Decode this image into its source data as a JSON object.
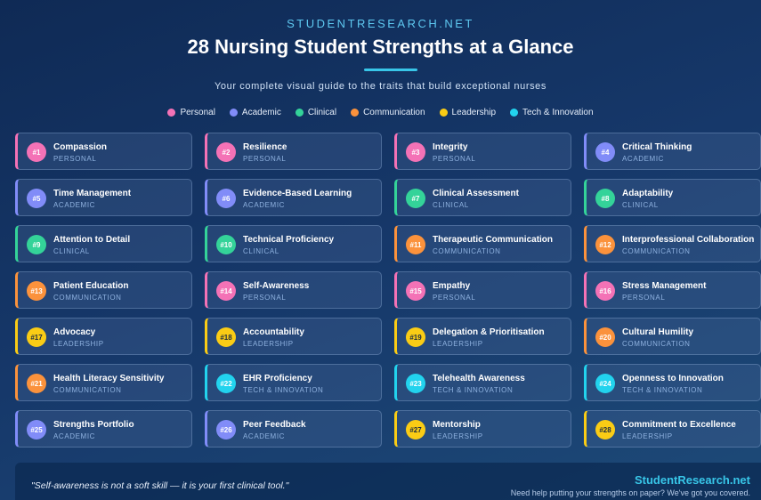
{
  "header": {
    "site": "STUDENTRESEARCH.NET",
    "title": "28 Nursing Student Strengths at a Glance",
    "subtitle": "Your complete visual guide to the traits that build exceptional nurses"
  },
  "legend": [
    {
      "label": "Personal",
      "color": "#f472b6"
    },
    {
      "label": "Academic",
      "color": "#818cf8"
    },
    {
      "label": "Clinical",
      "color": "#34d399"
    },
    {
      "label": "Communication",
      "color": "#fb923c"
    },
    {
      "label": "Leadership",
      "color": "#facc15"
    },
    {
      "label": "Tech & Innovation",
      "color": "#22d3ee"
    }
  ],
  "cards": [
    {
      "number": "#1",
      "name": "Compassion",
      "category": "PERSONAL",
      "color": "#f472b6"
    },
    {
      "number": "#2",
      "name": "Resilience",
      "category": "PERSONAL",
      "color": "#f472b6"
    },
    {
      "number": "#3",
      "name": "Integrity",
      "category": "PERSONAL",
      "color": "#f472b6"
    },
    {
      "number": "#4",
      "name": "Critical Thinking",
      "category": "ACADEMIC",
      "color": "#818cf8"
    },
    {
      "number": "#5",
      "name": "Time Management",
      "category": "ACADEMIC",
      "color": "#818cf8"
    },
    {
      "number": "#6",
      "name": "Evidence-Based Learning",
      "category": "ACADEMIC",
      "color": "#818cf8"
    },
    {
      "number": "#7",
      "name": "Clinical Assessment",
      "category": "CLINICAL",
      "color": "#34d399"
    },
    {
      "number": "#8",
      "name": "Adaptability",
      "category": "CLINICAL",
      "color": "#34d399"
    },
    {
      "number": "#9",
      "name": "Attention to Detail",
      "category": "CLINICAL",
      "color": "#34d399"
    },
    {
      "number": "#10",
      "name": "Technical Proficiency",
      "category": "CLINICAL",
      "color": "#34d399"
    },
    {
      "number": "#11",
      "name": "Therapeutic Communication",
      "category": "COMMUNICATION",
      "color": "#fb923c"
    },
    {
      "number": "#12",
      "name": "Interprofessional Collaboration",
      "category": "COMMUNICATION",
      "color": "#fb923c"
    },
    {
      "number": "#13",
      "name": "Patient Education",
      "category": "COMMUNICATION",
      "color": "#fb923c"
    },
    {
      "number": "#14",
      "name": "Self-Awareness",
      "category": "PERSONAL",
      "color": "#f472b6"
    },
    {
      "number": "#15",
      "name": "Empathy",
      "category": "PERSONAL",
      "color": "#f472b6"
    },
    {
      "number": "#16",
      "name": "Stress Management",
      "category": "PERSONAL",
      "color": "#f472b6"
    },
    {
      "number": "#17",
      "name": "Advocacy",
      "category": "LEADERSHIP",
      "color": "#facc15"
    },
    {
      "number": "#18",
      "name": "Accountability",
      "category": "LEADERSHIP",
      "color": "#facc15"
    },
    {
      "number": "#19",
      "name": "Delegation & Prioritisation",
      "category": "LEADERSHIP",
      "color": "#facc15"
    },
    {
      "number": "#20",
      "name": "Cultural Humility",
      "category": "COMMUNICATION",
      "color": "#fb923c"
    },
    {
      "number": "#21",
      "name": "Health Literacy Sensitivity",
      "category": "COMMUNICATION",
      "color": "#fb923c"
    },
    {
      "number": "#22",
      "name": "EHR Proficiency",
      "category": "TECH & INNOVATION",
      "color": "#22d3ee"
    },
    {
      "number": "#23",
      "name": "Telehealth Awareness",
      "category": "TECH & INNOVATION",
      "color": "#22d3ee"
    },
    {
      "number": "#24",
      "name": "Openness to Innovation",
      "category": "TECH & INNOVATION",
      "color": "#22d3ee"
    },
    {
      "number": "#25",
      "name": "Strengths Portfolio",
      "category": "ACADEMIC",
      "color": "#818cf8"
    },
    {
      "number": "#26",
      "name": "Peer Feedback",
      "category": "ACADEMIC",
      "color": "#818cf8"
    },
    {
      "number": "#27",
      "name": "Mentorship",
      "category": "LEADERSHIP",
      "color": "#facc15"
    },
    {
      "number": "#28",
      "name": "Commitment to Excellence",
      "category": "LEADERSHIP",
      "color": "#facc15"
    }
  ],
  "footer": {
    "quote": "\"Self-awareness is not a soft skill — it is your first clinical tool.\"",
    "brand": "StudentResearch.net",
    "tagline": "Need help putting your strengths on paper? We've got you covered."
  }
}
